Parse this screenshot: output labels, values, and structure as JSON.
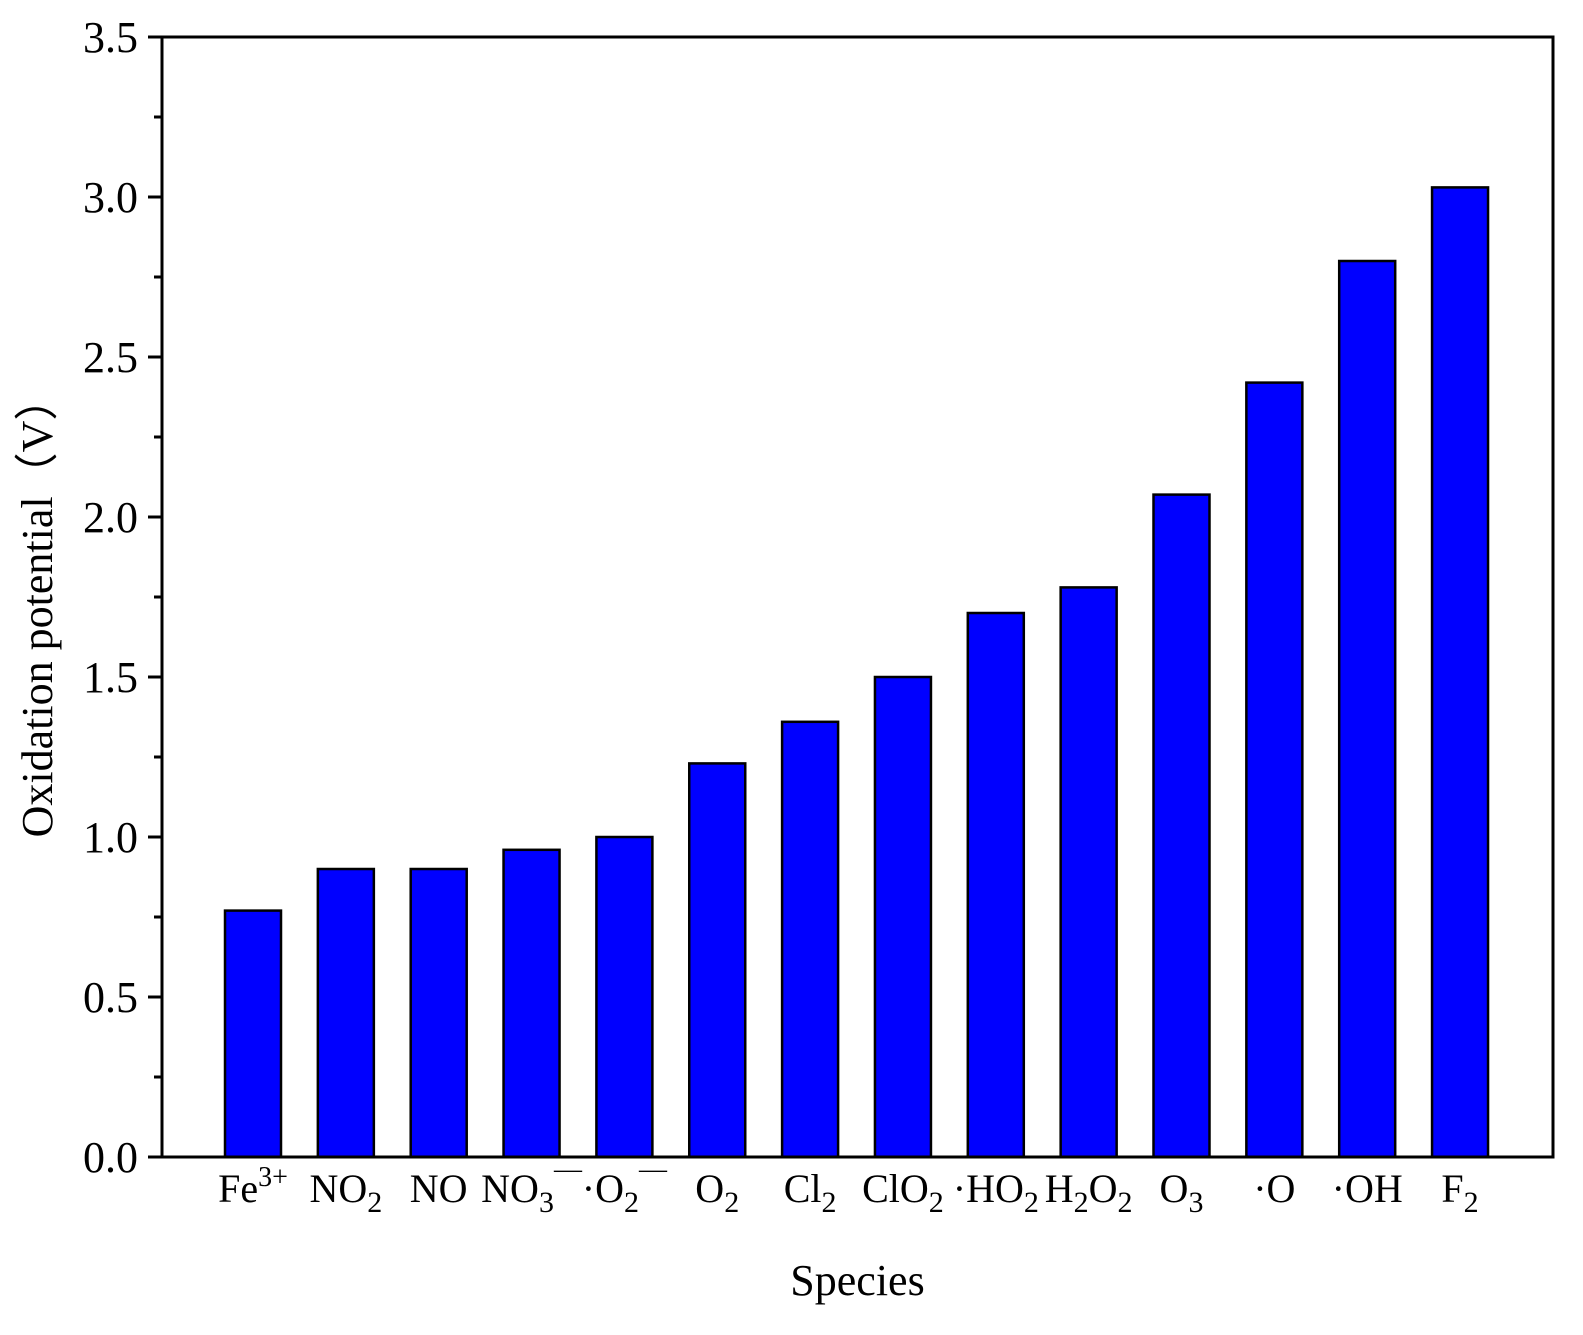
{
  "chart_data": {
    "type": "bar",
    "xlabel": "Species",
    "ylabel": "Oxidation potential（V）",
    "ylim": [
      0,
      3.5
    ],
    "yticks": [
      "0.0",
      "0.5",
      "1.0",
      "1.5",
      "2.0",
      "2.5",
      "3.0",
      "3.5"
    ],
    "grid": false,
    "bar_color": "#0000FF",
    "categories": [
      {
        "base": "Fe",
        "sup": "3+",
        "sub": "",
        "suffix": ""
      },
      {
        "base": "NO",
        "sup": "",
        "sub": "2",
        "suffix": ""
      },
      {
        "base": "NO",
        "sup": "",
        "sub": "",
        "suffix": ""
      },
      {
        "base": "NO",
        "sup": "",
        "sub": "3",
        "suffix": "—"
      },
      {
        "base": "·O",
        "sup": "",
        "sub": "2",
        "suffix": "—"
      },
      {
        "base": "O",
        "sup": "",
        "sub": "2",
        "suffix": ""
      },
      {
        "base": "Cl",
        "sup": "",
        "sub": "2",
        "suffix": ""
      },
      {
        "base": "ClO",
        "sup": "",
        "sub": "2",
        "suffix": ""
      },
      {
        "base": "·HO",
        "sup": "",
        "sub": "2",
        "suffix": ""
      },
      {
        "base": "H2O",
        "sup": "",
        "sub": "2",
        "suffix": ""
      },
      {
        "base": "O",
        "sup": "",
        "sub": "3",
        "suffix": ""
      },
      {
        "base": "·O",
        "sup": "",
        "sub": "",
        "suffix": ""
      },
      {
        "base": "·OH",
        "sup": "",
        "sub": "",
        "suffix": ""
      },
      {
        "base": "F",
        "sup": "",
        "sub": "2",
        "suffix": ""
      }
    ],
    "values": [
      0.77,
      0.9,
      0.9,
      0.96,
      1.0,
      1.23,
      1.36,
      1.5,
      1.7,
      1.78,
      2.07,
      2.42,
      2.8,
      3.03
    ]
  }
}
